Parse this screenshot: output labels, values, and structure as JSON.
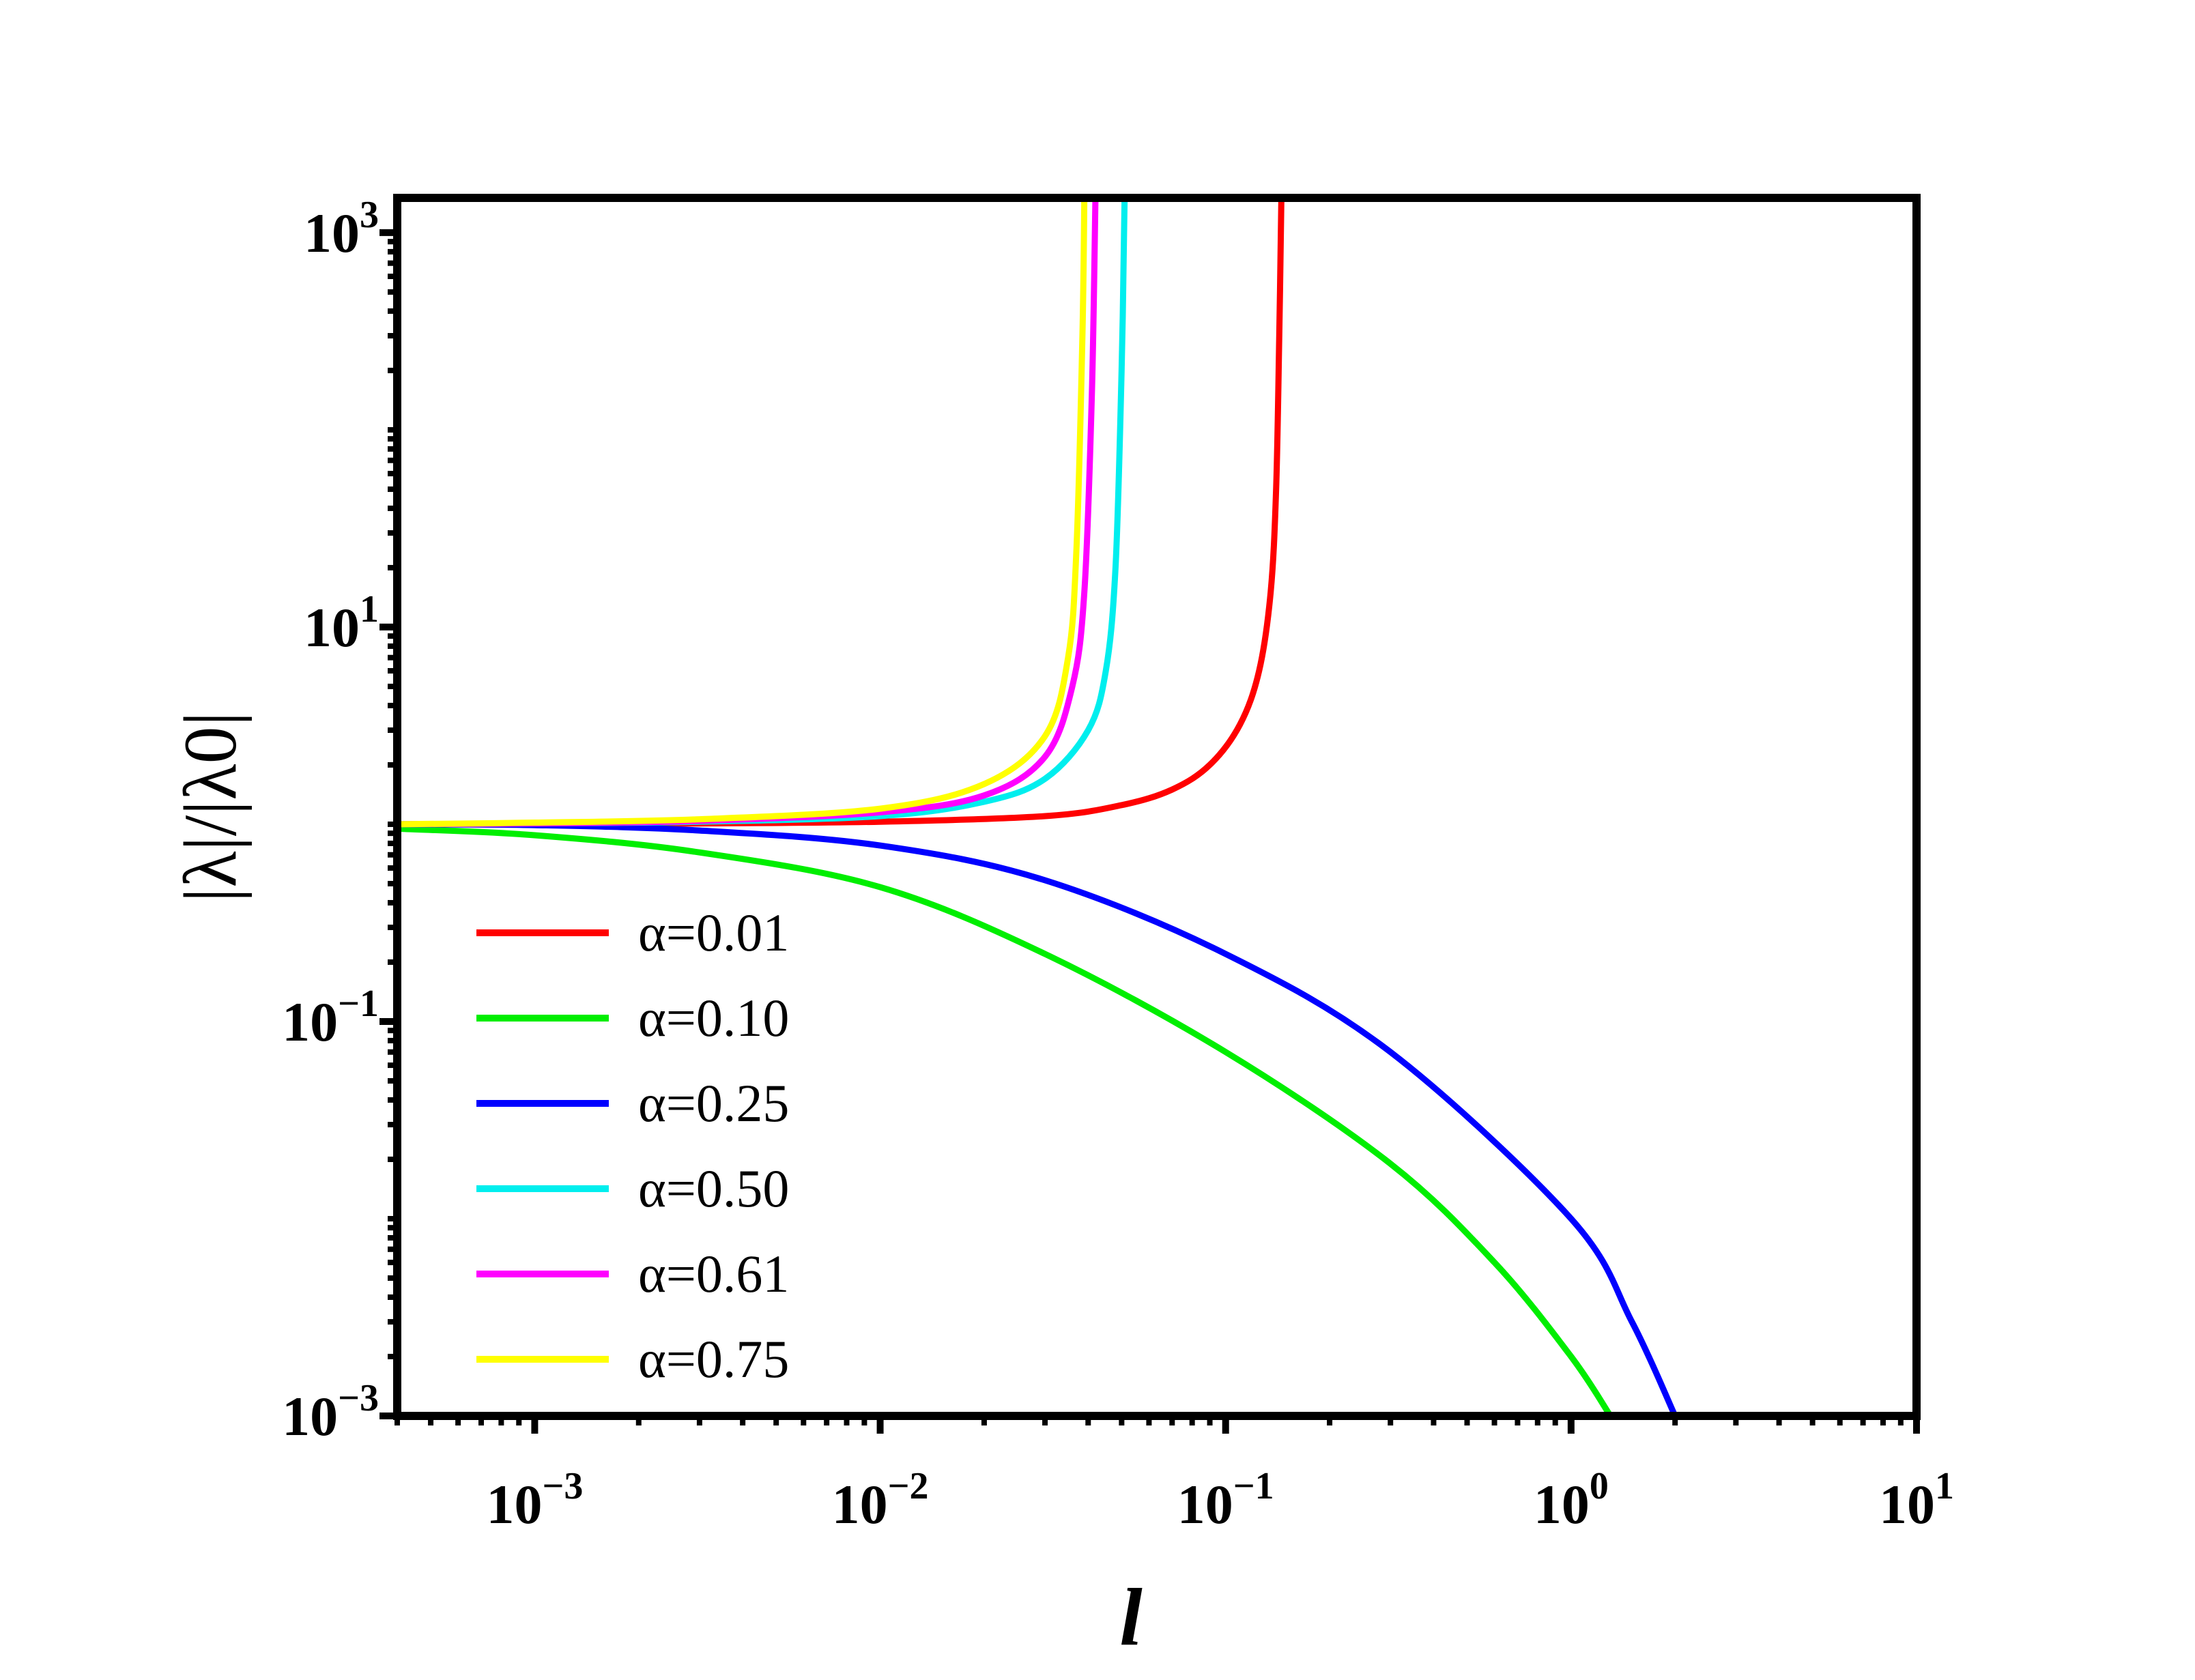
{
  "chart_data": {
    "type": "line",
    "xlabel": "l",
    "ylabel": "|λ|/|λ0|",
    "xscale": "log",
    "yscale": "log",
    "xlim": [
      0.0004,
      10
    ],
    "ylim": [
      0.001,
      1500
    ],
    "x_ticks": [
      {
        "value": 0.001,
        "base": "10",
        "exp": "−3"
      },
      {
        "value": 0.01,
        "base": "10",
        "exp": "−2"
      },
      {
        "value": 0.1,
        "base": "10",
        "exp": "−1"
      },
      {
        "value": 1,
        "base": "10",
        "exp": "0"
      },
      {
        "value": 10,
        "base": "10",
        "exp": "1"
      }
    ],
    "y_ticks": [
      {
        "value": 0.001,
        "base": "10",
        "exp": "−3"
      },
      {
        "value": 0.1,
        "base": "10",
        "exp": "−1"
      },
      {
        "value": 10,
        "base": "10",
        "exp": "1"
      },
      {
        "value": 1000,
        "base": "10",
        "exp": "3"
      }
    ],
    "grid": false,
    "legend_position": "lower-left",
    "series": [
      {
        "name": "α=0.01",
        "color": "#ff0000",
        "x": [
          0.0004,
          0.001,
          0.003,
          0.01,
          0.03,
          0.05,
          0.07,
          0.09,
          0.11,
          0.125,
          0.135,
          0.14,
          0.143,
          0.145
        ],
        "y": [
          1.0,
          1.0,
          1.01,
          1.03,
          1.1,
          1.25,
          1.5,
          2.0,
          3.2,
          6.0,
          15,
          50,
          300,
          1500
        ]
      },
      {
        "name": "α=0.10",
        "color": "#00ee00",
        "x": [
          0.0004,
          0.001,
          0.003,
          0.01,
          0.03,
          0.1,
          0.3,
          0.6,
          1.0,
          1.3
        ],
        "y": [
          0.95,
          0.88,
          0.72,
          0.48,
          0.22,
          0.07,
          0.019,
          0.006,
          0.002,
          0.001
        ]
      },
      {
        "name": "α=0.25",
        "color": "#0000ff",
        "x": [
          0.0004,
          0.001,
          0.003,
          0.01,
          0.03,
          0.1,
          0.3,
          1.0,
          1.5,
          2.0
        ],
        "y": [
          1.0,
          0.99,
          0.93,
          0.78,
          0.52,
          0.22,
          0.07,
          0.01,
          0.003,
          0.001
        ]
      },
      {
        "name": "α=0.50",
        "color": "#00eeee",
        "x": [
          0.0004,
          0.001,
          0.003,
          0.01,
          0.02,
          0.03,
          0.04,
          0.045,
          0.048,
          0.05,
          0.051
        ],
        "y": [
          1.0,
          1.01,
          1.03,
          1.1,
          1.3,
          1.7,
          3.0,
          6.0,
          20,
          200,
          1500
        ]
      },
      {
        "name": "α=0.61",
        "color": "#ff00ff",
        "x": [
          0.0004,
          0.001,
          0.003,
          0.01,
          0.02,
          0.03,
          0.036,
          0.039,
          0.041,
          0.042
        ],
        "y": [
          1.0,
          1.01,
          1.04,
          1.15,
          1.4,
          2.2,
          5.0,
          15,
          150,
          1500
        ]
      },
      {
        "name": "α=0.75",
        "color": "#ffff00",
        "x": [
          0.0004,
          0.001,
          0.003,
          0.01,
          0.02,
          0.03,
          0.035,
          0.037,
          0.0385,
          0.039
        ],
        "y": [
          1.0,
          1.02,
          1.06,
          1.2,
          1.6,
          2.8,
          7.0,
          25,
          300,
          1500
        ]
      }
    ]
  }
}
